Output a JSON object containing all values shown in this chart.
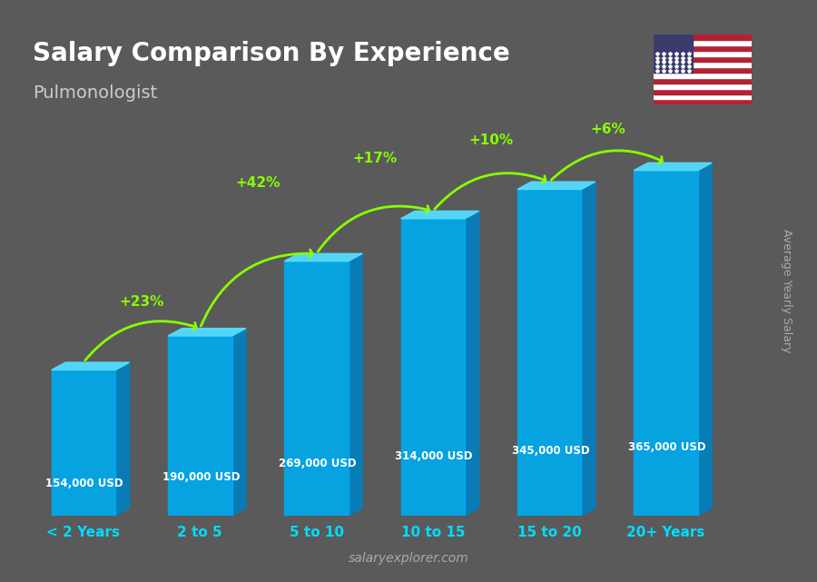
{
  "title": "Salary Comparison By Experience",
  "subtitle": "Pulmonologist",
  "ylabel": "Average Yearly Salary",
  "website": "salaryexplorer.com",
  "categories": [
    "< 2 Years",
    "2 to 5",
    "5 to 10",
    "10 to 15",
    "15 to 20",
    "20+ Years"
  ],
  "values": [
    154000,
    190000,
    269000,
    314000,
    345000,
    365000
  ],
  "labels": [
    "154,000 USD",
    "190,000 USD",
    "269,000 USD",
    "314,000 USD",
    "345,000 USD",
    "365,000 USD"
  ],
  "pct_changes": [
    "+23%",
    "+42%",
    "+17%",
    "+10%",
    "+6%"
  ],
  "bar_color_top": "#00bfff",
  "bar_color_side": "#0080c0",
  "bar_color_front": "#00aaee",
  "bg_color": "#5a5a5a",
  "title_color": "#ffffff",
  "subtitle_color": "#cccccc",
  "label_color": "#ffffff",
  "pct_color": "#88ff00",
  "tick_color": "#00ddff",
  "arrow_color": "#88ff00",
  "bar_width": 0.55,
  "bar_depth": 0.15,
  "ylim_max": 420000
}
